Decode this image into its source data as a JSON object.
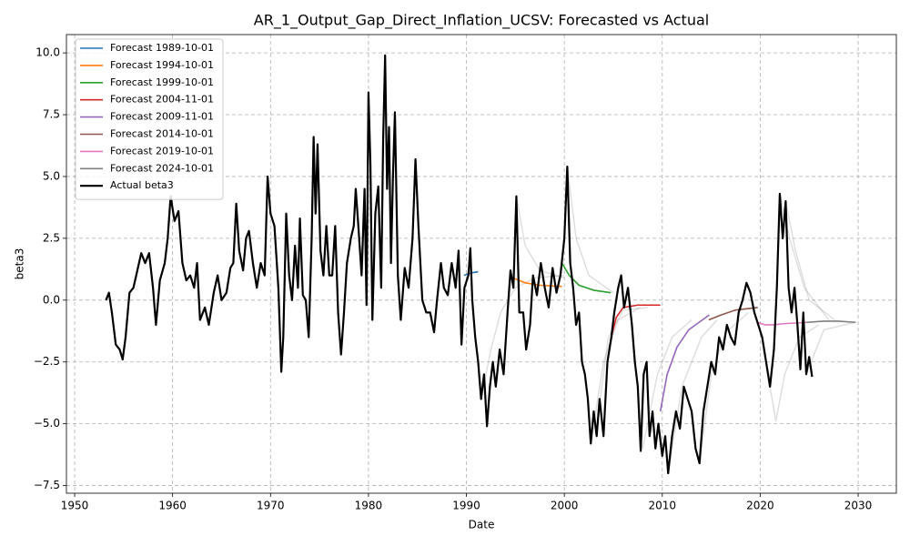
{
  "chart_data": {
    "type": "line",
    "title": "AR_1_Output_Gap_Direct_Inflation_UCSV: Forecasted vs Actual",
    "x_label": "Date",
    "y_label": "beta3",
    "xlim": [
      1949.16,
      2033.9
    ],
    "ylim": [
      -7.81,
      10.74
    ],
    "xticks": [
      1950,
      1960,
      1970,
      1980,
      1990,
      2000,
      2010,
      2020,
      2030
    ],
    "yticks": [
      {
        "value": -7.5,
        "label": "−7.5"
      },
      {
        "value": -5,
        "label": "−5.0"
      },
      {
        "value": -2.5,
        "label": "−2.5"
      },
      {
        "value": 0,
        "label": "0.0"
      },
      {
        "value": 2.5,
        "label": "2.5"
      },
      {
        "value": 5,
        "label": "5.0"
      },
      {
        "value": 7.5,
        "label": "7.5"
      },
      {
        "value": 10,
        "label": "10.0"
      }
    ],
    "grid": true,
    "legend": "upper left",
    "background_forecasts": [
      {
        "x": [
          1991.5,
          1992.5,
          1993.5,
          1995,
          1997,
          2000
        ],
        "values": [
          -4.0,
          -2.0,
          -0.5,
          0.5,
          0.9,
          1.0
        ]
      },
      {
        "x": [
          1995.1,
          1996,
          1997.5,
          2000
        ],
        "values": [
          4.2,
          2.2,
          1.2,
          0.9
        ]
      },
      {
        "x": [
          2000.3,
          2001.2,
          2002.5,
          2005
        ],
        "values": [
          5.4,
          2.5,
          1.0,
          0.3
        ]
      },
      {
        "x": [
          2002.7,
          2004,
          2005.5,
          2007.7
        ],
        "values": [
          -5.8,
          -2.5,
          -0.8,
          -0.3
        ]
      },
      {
        "x": [
          2003.5,
          2004.5,
          2006,
          2008.5
        ],
        "values": [
          -4.5,
          -1.5,
          -0.4,
          -0.3
        ]
      },
      {
        "x": [
          2008,
          2009.5,
          2011,
          2013
        ],
        "values": [
          -6.0,
          -3.0,
          -1.5,
          -0.8
        ]
      },
      {
        "x": [
          2010.6,
          2012,
          2014,
          2015.6
        ],
        "values": [
          -7.0,
          -3.5,
          -1.5,
          -0.8
        ]
      },
      {
        "x": [
          2013.8,
          2015,
          2016.5,
          2018.8
        ],
        "values": [
          -6.6,
          -3.0,
          -1.3,
          -0.5
        ]
      },
      {
        "x": [
          2021,
          2021.6,
          2022.5,
          2024,
          2026
        ],
        "values": [
          -3.5,
          -4.9,
          -3.0,
          -1.5,
          -1.0
        ]
      },
      {
        "x": [
          2022,
          2023,
          2024.5,
          2027
        ],
        "values": [
          4.3,
          2.5,
          0.5,
          -0.8
        ]
      },
      {
        "x": [
          2022.6,
          2023.6,
          2025,
          2027.6
        ],
        "values": [
          4.0,
          2.0,
          0.0,
          -0.8
        ]
      },
      {
        "x": [
          2024.7,
          2026.5,
          2029.7
        ],
        "values": [
          -3.0,
          -1.2,
          -0.9
        ]
      }
    ],
    "series": [
      {
        "name": "Forecast 1989-10-01",
        "color": "#1f77b4",
        "x": [
          1989.75,
          1990.5,
          1991.2
        ],
        "values": [
          1.0,
          1.1,
          1.15
        ]
      },
      {
        "name": "Forecast 1994-10-01",
        "color": "#ff7f0e",
        "x": [
          1994.75,
          1996,
          1997.5,
          1999.75
        ],
        "values": [
          0.9,
          0.7,
          0.6,
          0.55
        ]
      },
      {
        "name": "Forecast 1999-10-01",
        "color": "#2ca02c",
        "x": [
          1999.75,
          2000.5,
          2001.5,
          2003,
          2004.75
        ],
        "values": [
          1.5,
          1.0,
          0.6,
          0.4,
          0.3
        ]
      },
      {
        "name": "Forecast 2004-11-01",
        "color": "#d62728",
        "x": [
          2004.8,
          2005.3,
          2006,
          2007.5,
          2009.8
        ],
        "values": [
          -1.5,
          -0.7,
          -0.3,
          -0.2,
          -0.2
        ]
      },
      {
        "name": "Forecast 2009-11-01",
        "color": "#9467bd",
        "x": [
          2009.8,
          2010.5,
          2011.5,
          2012.7,
          2014.8
        ],
        "values": [
          -4.5,
          -3.0,
          -1.9,
          -1.2,
          -0.6
        ]
      },
      {
        "name": "Forecast 2014-10-01",
        "color": "#8c564b",
        "x": [
          2014.75,
          2016,
          2017.5,
          2019.75
        ],
        "values": [
          -0.8,
          -0.6,
          -0.4,
          -0.3
        ]
      },
      {
        "name": "Forecast 2019-10-01",
        "color": "#e377c2",
        "x": [
          2019.75,
          2020.5,
          2021.3,
          2022.5,
          2024.75
        ],
        "values": [
          -0.9,
          -1.0,
          -1.0,
          -0.95,
          -0.9
        ]
      },
      {
        "name": "Forecast 2024-10-01",
        "color": "#7f7f7f",
        "x": [
          2024.75,
          2026.5,
          2028,
          2029.75
        ],
        "values": [
          -0.9,
          -0.85,
          -0.85,
          -0.9
        ]
      },
      {
        "name": "Actual beta3",
        "color": "#000000",
        "x": [
          1953.2,
          1953.5,
          1953.8,
          1954.2,
          1954.6,
          1954.9,
          1955.2,
          1955.6,
          1956,
          1956.4,
          1956.8,
          1957.2,
          1957.6,
          1958,
          1958.3,
          1958.7,
          1959.2,
          1959.5,
          1959.8,
          1960.2,
          1960.6,
          1961,
          1961.4,
          1961.8,
          1962.2,
          1962.5,
          1962.8,
          1963.3,
          1963.7,
          1964.2,
          1964.6,
          1965,
          1965.5,
          1965.9,
          1966.2,
          1966.5,
          1966.8,
          1967.2,
          1967.5,
          1967.8,
          1968.2,
          1968.6,
          1969,
          1969.4,
          1969.7,
          1970,
          1970.4,
          1970.8,
          1971.1,
          1971.3,
          1971.6,
          1971.9,
          1972.2,
          1972.5,
          1972.8,
          1973,
          1973.3,
          1973.6,
          1973.9,
          1974.2,
          1974.4,
          1974.6,
          1974.8,
          1975.1,
          1975.4,
          1975.7,
          1976,
          1976.3,
          1976.6,
          1976.9,
          1977.2,
          1977.5,
          1977.8,
          1978.2,
          1978.5,
          1978.7,
          1979,
          1979.3,
          1979.6,
          1979.8,
          1980,
          1980.2,
          1980.4,
          1980.7,
          1981,
          1981.3,
          1981.5,
          1981.7,
          1981.9,
          1982.1,
          1982.3,
          1982.5,
          1982.7,
          1983,
          1983.3,
          1983.7,
          1984.1,
          1984.5,
          1984.8,
          1985.1,
          1985.5,
          1985.9,
          1986.3,
          1986.7,
          1987,
          1987.4,
          1987.7,
          1988.1,
          1988.5,
          1988.9,
          1989.2,
          1989.5,
          1989.8,
          1990.2,
          1990.4,
          1990.6,
          1990.9,
          1991.2,
          1991.5,
          1991.8,
          1992.1,
          1992.4,
          1992.7,
          1993,
          1993.4,
          1993.8,
          1994.2,
          1994.5,
          1994.8,
          1995.1,
          1995.4,
          1995.8,
          1996.1,
          1996.5,
          1996.8,
          1997.2,
          1997.6,
          1998,
          1998.4,
          1998.8,
          1999.2,
          1999.6,
          2000,
          2000.3,
          2000.6,
          2000.9,
          2001.2,
          2001.5,
          2001.8,
          2002.1,
          2002.4,
          2002.7,
          2003,
          2003.3,
          2003.6,
          2004,
          2004.4,
          2004.8,
          2005.1,
          2005.5,
          2005.8,
          2006.1,
          2006.5,
          2006.9,
          2007.2,
          2007.5,
          2007.8,
          2008.1,
          2008.4,
          2008.7,
          2009,
          2009.3,
          2009.6,
          2010,
          2010.3,
          2010.6,
          2011,
          2011.4,
          2011.8,
          2012.2,
          2012.6,
          2013,
          2013.4,
          2013.8,
          2014.2,
          2014.6,
          2015,
          2015.4,
          2015.8,
          2016.2,
          2016.6,
          2017,
          2017.4,
          2017.8,
          2018.2,
          2018.6,
          2019,
          2019.4,
          2019.8,
          2020.2,
          2020.6,
          2021,
          2021.4,
          2021.7,
          2022,
          2022.3,
          2022.6,
          2022.9,
          2023.2,
          2023.5,
          2023.8,
          2024.1,
          2024.4,
          2024.7,
          2025,
          2025.3
        ],
        "values": [
          0,
          0.3,
          -0.5,
          -1.8,
          -2.0,
          -2.4,
          -1.5,
          0.3,
          0.5,
          1.2,
          1.9,
          1.5,
          1.9,
          0.5,
          -1.0,
          0.8,
          1.5,
          2.5,
          4.2,
          3.2,
          3.6,
          1.5,
          0.8,
          1.0,
          0.5,
          1.5,
          -0.8,
          -0.3,
          -1.0,
          0.3,
          1.0,
          0.0,
          0.3,
          1.3,
          1.5,
          3.9,
          2.0,
          1.2,
          2.5,
          2.8,
          1.5,
          0.5,
          1.5,
          1.0,
          5.0,
          3.5,
          3.0,
          0.5,
          -2.9,
          -1.5,
          3.5,
          1.0,
          0.0,
          2.2,
          0.5,
          3.3,
          0.2,
          0.0,
          -1.5,
          2.5,
          6.6,
          3.5,
          6.3,
          2.0,
          1.0,
          3.0,
          1.0,
          1.0,
          3.0,
          -0.5,
          -2.2,
          -0.5,
          1.5,
          2.5,
          3.0,
          4.5,
          2.8,
          1.0,
          4.5,
          -0.2,
          8.4,
          5.5,
          -0.8,
          3.5,
          4.6,
          0.5,
          6.5,
          9.9,
          4.5,
          7.0,
          1.5,
          5.0,
          7.6,
          1.0,
          -0.8,
          1.3,
          0.5,
          2.5,
          5.7,
          3.0,
          0.0,
          -0.5,
          -0.5,
          -1.3,
          0.0,
          1.5,
          0.5,
          0.2,
          1.5,
          0.5,
          2.0,
          -1.8,
          0.5,
          1.0,
          2.1,
          0.0,
          -1.5,
          -2.5,
          -4.0,
          -3.0,
          -5.1,
          -3.5,
          -2.5,
          -3.5,
          -2.0,
          -3.0,
          -0.5,
          1.2,
          0.5,
          4.2,
          -0.5,
          -0.5,
          -2.0,
          -1.0,
          1.0,
          0.2,
          1.5,
          0.5,
          -0.3,
          1.3,
          0.3,
          1.0,
          2.5,
          5.4,
          1.5,
          0.5,
          -1.0,
          -0.5,
          -2.5,
          -3.0,
          -4.0,
          -5.8,
          -4.5,
          -5.5,
          -4.0,
          -5.5,
          -2.5,
          -1.5,
          -0.5,
          0.5,
          1.0,
          -0.3,
          0.5,
          -1.0,
          -2.5,
          -3.5,
          -6.1,
          -3.0,
          -2.5,
          -5.5,
          -4.5,
          -6.0,
          -5.0,
          -6.3,
          -5.5,
          -7.0,
          -5.5,
          -4.5,
          -5.2,
          -3.5,
          -4.0,
          -4.5,
          -6.0,
          -6.6,
          -4.5,
          -3.5,
          -2.5,
          -3.0,
          -1.5,
          -2.0,
          -1.0,
          -1.5,
          -1.8,
          -0.5,
          0.0,
          0.7,
          0.3,
          -0.5,
          -1.0,
          -1.5,
          -2.5,
          -3.5,
          -2.0,
          0.5,
          4.3,
          2.5,
          4.0,
          0.5,
          -0.5,
          0.5,
          -1.0,
          -2.8,
          -0.5,
          -3.0,
          -2.3,
          -3.1
        ]
      }
    ]
  }
}
